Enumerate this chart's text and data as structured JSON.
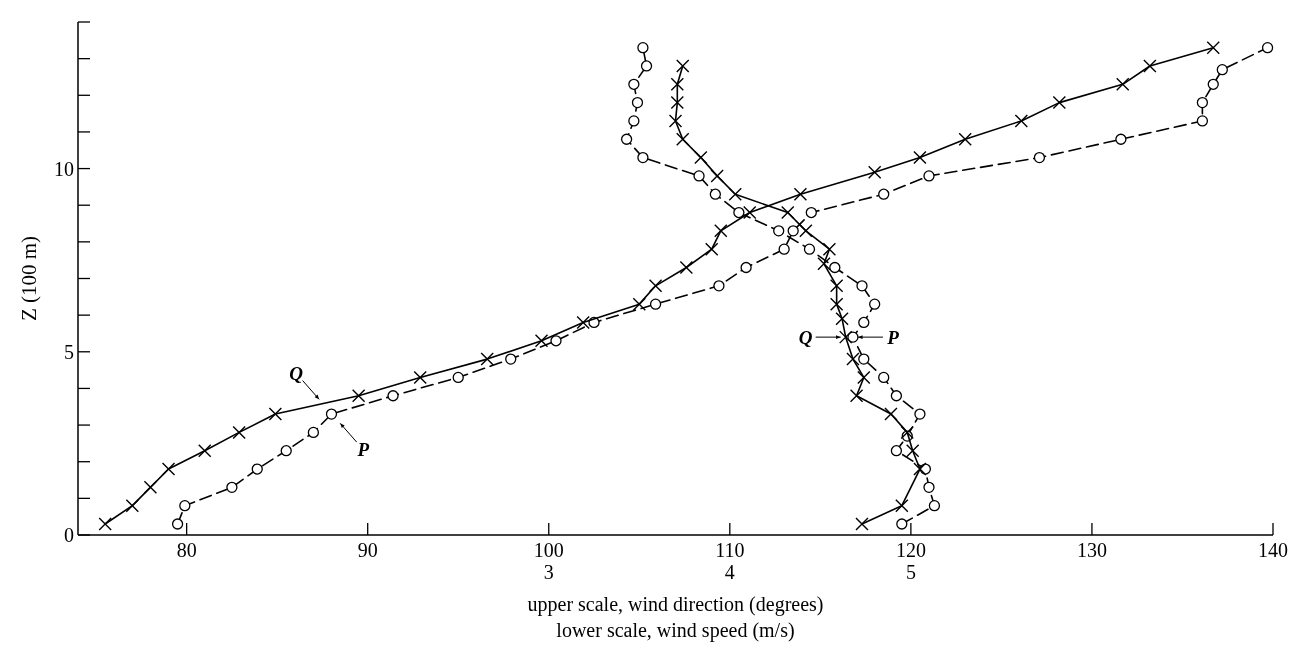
{
  "chart_data": {
    "type": "line",
    "xlabel": "upper scale, wind direction (degrees)",
    "x2label": "lower scale, wind speed (m/s)",
    "ylabel": "Z (100 m)",
    "xlim": [
      74,
      140
    ],
    "xticks": [
      80,
      90,
      100,
      110,
      120,
      130,
      140
    ],
    "x2lim": [
      0.4,
      7.0
    ],
    "x2ticks": [
      3,
      4,
      5
    ],
    "ylim": [
      0,
      14
    ],
    "yticks": [
      0,
      {
        "value": 1,
        "label": null
      },
      {
        "value": 2,
        "label": null
      },
      {
        "value": 3,
        "label": null
      },
      {
        "value": 4,
        "label": null
      },
      5,
      {
        "value": 6,
        "label": null
      },
      {
        "value": 7,
        "label": null
      },
      {
        "value": 8,
        "label": null
      },
      {
        "value": 9,
        "label": null
      },
      10,
      {
        "value": 11,
        "label": null
      },
      {
        "value": 12,
        "label": null
      },
      {
        "value": 13,
        "label": null
      },
      {
        "value": 14,
        "label": null
      }
    ],
    "grid": false,
    "series": [
      {
        "color": "#000000",
        "marker": "circle",
        "line_style": "dashed",
        "x": [
          79.5,
          79.9,
          82.5,
          83.9,
          85.5,
          87.0,
          88.0,
          91.4,
          95.0,
          97.9,
          100.4,
          102.5,
          105.9,
          109.4,
          110.9,
          113.0,
          113.5,
          114.5,
          118.5,
          121.0,
          127.1,
          131.6,
          136.1,
          136.1,
          136.7,
          137.2,
          139.7
        ],
        "values": [
          0.3,
          0.8,
          1.3,
          1.8,
          2.3,
          2.8,
          3.3,
          3.8,
          4.3,
          4.8,
          5.3,
          5.8,
          6.3,
          6.8,
          7.3,
          7.8,
          8.3,
          8.8,
          9.3,
          9.8,
          10.3,
          10.8,
          11.3,
          11.8,
          12.3,
          12.7,
          13.3
        ]
      },
      {
        "color": "#000000",
        "marker": "cross",
        "line_style": "solid",
        "x": [
          75.5,
          77.0,
          78.0,
          79.0,
          81.0,
          82.9,
          84.9,
          89.5,
          92.9,
          96.6,
          99.6,
          101.9,
          105.0,
          105.9,
          107.6,
          109.0,
          109.5,
          111.1,
          113.9,
          118.0,
          120.5,
          123.0,
          126.1,
          128.2,
          131.7,
          133.2,
          136.7
        ],
        "values": [
          0.3,
          0.8,
          1.3,
          1.8,
          2.3,
          2.8,
          3.3,
          3.8,
          4.3,
          4.8,
          5.3,
          5.8,
          6.3,
          6.8,
          7.3,
          7.8,
          8.3,
          8.8,
          9.3,
          9.9,
          10.3,
          10.8,
          11.3,
          11.8,
          12.3,
          12.8,
          13.3
        ]
      },
      {
        "color": "#000000",
        "marker": "circle",
        "line_style": "dashed",
        "axis": "x2",
        "x": [
          4.95,
          5.13,
          5.1,
          5.08,
          4.92,
          4.98,
          5.05,
          4.92,
          4.85,
          4.74,
          4.68,
          4.74,
          4.8,
          4.73,
          4.58,
          4.44,
          4.27,
          4.05,
          3.92,
          3.83,
          3.52,
          3.43,
          3.47,
          3.49,
          3.47,
          3.54,
          3.52
        ],
        "values": [
          0.3,
          0.8,
          1.3,
          1.8,
          2.3,
          2.7,
          3.3,
          3.8,
          4.3,
          4.8,
          5.4,
          5.8,
          6.3,
          6.8,
          7.3,
          7.8,
          8.3,
          8.8,
          9.3,
          9.8,
          10.3,
          10.8,
          11.3,
          11.8,
          12.3,
          12.8,
          13.3
        ]
      },
      {
        "color": "#000000",
        "marker": "cross",
        "line_style": "solid",
        "axis": "x2",
        "x": [
          4.73,
          4.95,
          5.05,
          5.01,
          4.98,
          4.89,
          4.7,
          4.74,
          4.68,
          4.64,
          4.62,
          4.59,
          4.59,
          4.52,
          4.55,
          4.42,
          4.32,
          4.03,
          3.93,
          3.84,
          3.74,
          3.7,
          3.71,
          3.71,
          3.74
        ],
        "values": [
          0.3,
          0.8,
          1.8,
          2.3,
          2.8,
          3.3,
          3.8,
          4.3,
          4.8,
          5.4,
          5.9,
          6.3,
          6.8,
          7.4,
          7.8,
          8.3,
          8.8,
          9.3,
          9.8,
          10.3,
          10.8,
          11.3,
          11.8,
          12.3,
          12.8
        ]
      }
    ],
    "annotations": [
      {
        "text": "Q",
        "x": 87.5,
        "y": 3.6
      },
      {
        "text": "P",
        "x": 88.3,
        "y": 3.15
      },
      {
        "text": "Q",
        "x": 116.4,
        "y": 5.4
      },
      {
        "text": "P",
        "x": 116.8,
        "y": 5.4
      }
    ]
  }
}
